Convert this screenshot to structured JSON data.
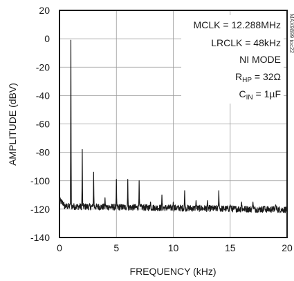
{
  "chart_data": {
    "type": "line",
    "xlabel": "FREQUENCY (kHz)",
    "ylabel": "AMPLITUDE (dBV)",
    "xlim": [
      0,
      20
    ],
    "ylim": [
      -140,
      20
    ],
    "x_ticks": [
      "0",
      "5",
      "10",
      "15",
      "20"
    ],
    "y_ticks": [
      "20",
      "0",
      "-20",
      "-40",
      "-60",
      "-80",
      "-100",
      "-120",
      "-140"
    ],
    "grid": true,
    "annotations": {
      "mclk": "MCLK = 12.288MHz",
      "lrclk": "LRCLK = 48kHz",
      "mode": "NI MODE",
      "rhp_main": "R",
      "rhp_sub": "HP",
      "rhp_rest": " = 32Ω",
      "cin_main": "C",
      "cin_sub": "IN",
      "cin_rest": " = 1µF"
    },
    "side_label": "MAX9899 toc22",
    "noise_floor_dbv": -118,
    "series": [
      {
        "x": [
          1,
          2,
          3,
          4,
          5,
          6,
          7,
          8,
          9,
          10,
          11,
          12,
          13,
          14,
          15,
          16,
          17,
          18,
          19
        ],
        "values": [
          -1,
          -78,
          -94,
          -112,
          -99,
          -99,
          -100,
          -115,
          -110,
          -115,
          -107,
          -114,
          -114,
          -107,
          -117,
          -115,
          -115,
          -118,
          -117
        ]
      }
    ]
  }
}
